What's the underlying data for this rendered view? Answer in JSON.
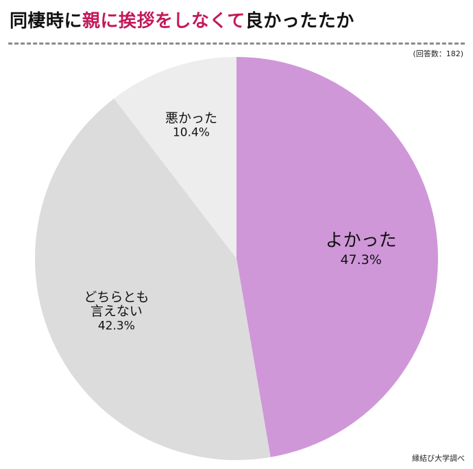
{
  "header": {
    "title_prefix": "同棲時に",
    "title_highlight": "親に挨拶をしなくて",
    "title_suffix": "良かったたか",
    "respondents": "(回答数：182)"
  },
  "footer": {
    "source": "縁結び大学調べ"
  },
  "colors": {
    "highlight": "#c4185a",
    "slice_good": "#cf97d8",
    "slice_neutral": "#dcdcdc",
    "slice_bad": "#ededed"
  },
  "chart_data": {
    "type": "pie",
    "title": "同棲時に親に挨拶をしなくて良かったたか",
    "slices": [
      {
        "label": "よかった",
        "value": 47.3,
        "value_label": "47.3%",
        "color": "#cf97d8"
      },
      {
        "label": "どちらとも\n言えない",
        "value": 42.3,
        "value_label": "42.3%",
        "color": "#dcdcdc"
      },
      {
        "label": "悪かった",
        "value": 10.4,
        "value_label": "10.4%",
        "color": "#ededed"
      }
    ],
    "start": "top",
    "direction": "clockwise",
    "legend": "none"
  }
}
